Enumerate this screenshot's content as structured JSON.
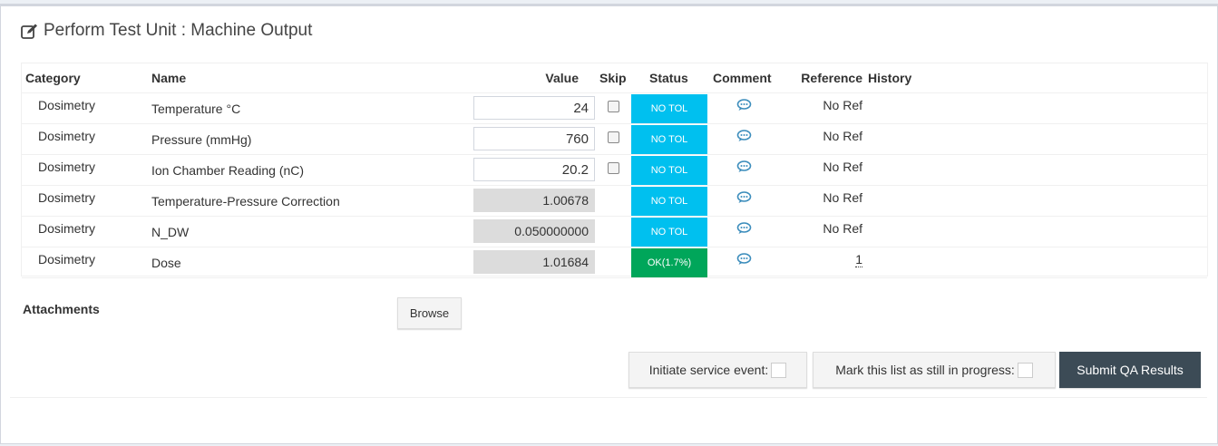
{
  "header": {
    "title": "Perform Test Unit : Machine Output"
  },
  "table": {
    "columns": [
      "Category",
      "Name",
      "Value",
      "Skip",
      "Status",
      "Comment",
      "Reference",
      "History"
    ],
    "rows": [
      {
        "category": "Dosimetry",
        "name": "Temperature °C",
        "value": "24",
        "editable": true,
        "status": "NO TOL",
        "status_color": "#00c0ef",
        "reference": "No Ref"
      },
      {
        "category": "Dosimetry",
        "name": "Pressure (mmHg)",
        "value": "760",
        "editable": true,
        "status": "NO TOL",
        "status_color": "#00c0ef",
        "reference": "No Ref"
      },
      {
        "category": "Dosimetry",
        "name": "Ion Chamber Reading (nC)",
        "value": "20.2",
        "editable": true,
        "status": "NO TOL",
        "status_color": "#00c0ef",
        "reference": "No Ref"
      },
      {
        "category": "Dosimetry",
        "name": "Temperature-Pressure Correction",
        "value": "1.00678",
        "editable": false,
        "status": "NO TOL",
        "status_color": "#00c0ef",
        "reference": "No Ref"
      },
      {
        "category": "Dosimetry",
        "name": "N_DW",
        "value": "0.050000000",
        "editable": false,
        "status": "NO TOL",
        "status_color": "#00c0ef",
        "reference": "No Ref"
      },
      {
        "category": "Dosimetry",
        "name": "Dose",
        "value": "1.01684",
        "editable": false,
        "status": "OK(1.7%)",
        "status_color": "#00a65a",
        "reference": "1"
      }
    ]
  },
  "attachments": {
    "label": "Attachments",
    "button": "Browse"
  },
  "footer": {
    "service_event": "Initiate service event:",
    "in_progress": "Mark this list as still in progress:",
    "submit": "Submit QA Results"
  }
}
